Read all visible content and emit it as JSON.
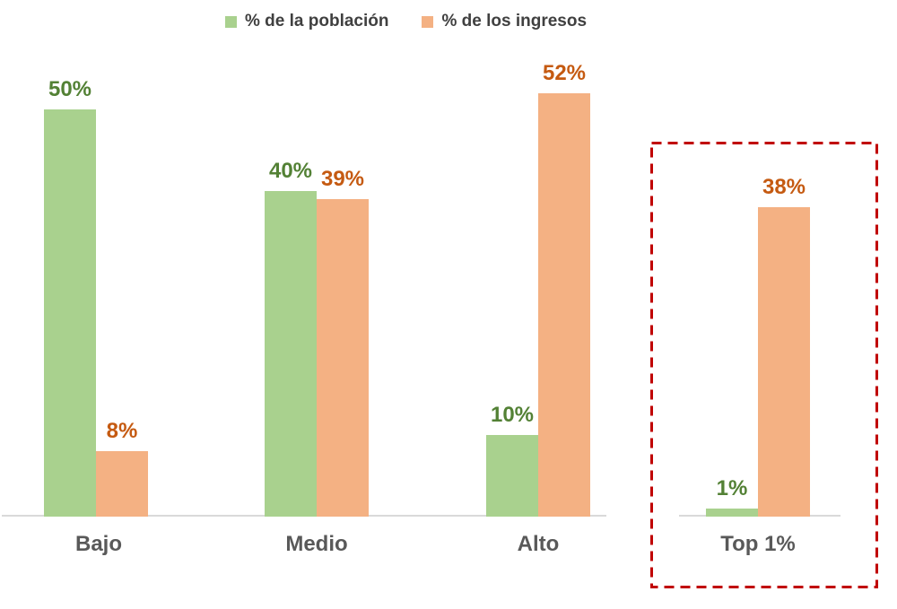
{
  "chart_data": {
    "type": "bar",
    "title": "",
    "xlabel": "",
    "ylabel": "",
    "ylim": [
      0,
      55
    ],
    "grid": false,
    "legend_position": "top",
    "categories": [
      "Bajo",
      "Medio",
      "Alto",
      "Top 1%"
    ],
    "series": [
      {
        "name": "% de la población",
        "color": "#a9d18e",
        "label_color": "#538135",
        "values": [
          50,
          40,
          10,
          1
        ],
        "labels": [
          "50%",
          "40%",
          "10%",
          "1%"
        ]
      },
      {
        "name": "% de los ingresos",
        "color": "#f4b183",
        "label_color": "#c55a11",
        "values": [
          8,
          39,
          52,
          38
        ],
        "labels": [
          "8%",
          "39%",
          "52%",
          "38%"
        ]
      }
    ],
    "annotations": [
      {
        "type": "highlight-box",
        "target": "Top 1%",
        "style": "red-dashed"
      }
    ]
  },
  "legend": {
    "items": [
      {
        "label": "% de la población",
        "color": "#a9d18e"
      },
      {
        "label": "% de los ingresos",
        "color": "#f4b183"
      }
    ]
  },
  "colors": {
    "bar_population": "#a9d18e",
    "bar_income": "#f4b183",
    "label_population": "#538135",
    "label_income": "#c55a11",
    "category_text": "#595959",
    "legend_text": "#404040",
    "axis_line": "#d9d9d9",
    "highlight_box": "#c00000"
  }
}
